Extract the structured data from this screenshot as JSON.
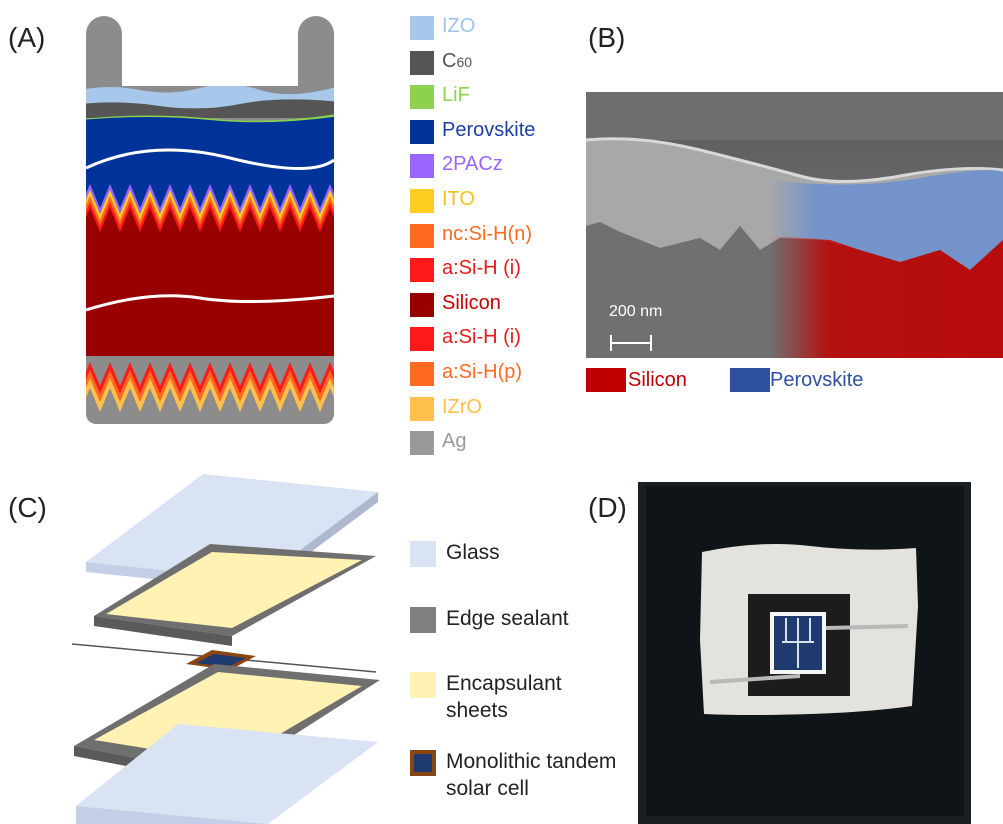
{
  "panels": {
    "a": "(A)",
    "b": "(B)",
    "c": "(C)",
    "d": "(D)"
  },
  "legend_a": [
    {
      "label": "IZO",
      "color": "#a7c8ea",
      "text_color": "#9fc3e8"
    },
    {
      "label": "C60",
      "color": "#555555",
      "text_color": "#555555"
    },
    {
      "label": "LiF",
      "color": "#8dd14f",
      "text_color": "#8dd14f"
    },
    {
      "label": "Perovskite",
      "color": "#003399",
      "text_color": "#1f3fa8"
    },
    {
      "label": "2PACz",
      "color": "#9966ff",
      "text_color": "#9966ff"
    },
    {
      "label": "ITO",
      "color": "#ffcc22",
      "text_color": "#f2c21b"
    },
    {
      "label": "nc:Si-H(n)",
      "color": "#ff6a22",
      "text_color": "#ff6a22"
    },
    {
      "label": "a:Si-H (i)",
      "color": "#ff1a1a",
      "text_color": "#e81a1a"
    },
    {
      "label": "Silicon",
      "color": "#990000",
      "text_color": "#c40000"
    },
    {
      "label": "a:Si-H (i)",
      "color": "#ff1a1a",
      "text_color": "#e81a1a"
    },
    {
      "label": "a:Si-H(p)",
      "color": "#ff6a22",
      "text_color": "#ff6a22"
    },
    {
      "label": "IZrO",
      "color": "#ffc04d",
      "text_color": "#ffbf40"
    },
    {
      "label": "Ag",
      "color": "#999999",
      "text_color": "#999999"
    }
  ],
  "sem": {
    "scale_label": "200 nm",
    "legend": [
      {
        "label": "Silicon",
        "color": "#c00000",
        "text_color": "#c00000"
      },
      {
        "label": "Perovskite",
        "color": "#2f4f9f",
        "text_color": "#2f4f9f"
      }
    ]
  },
  "legend_c": [
    {
      "label_lines": [
        "Glass"
      ],
      "color": "#dae3f3"
    },
    {
      "label_lines": [
        "Edge sealant"
      ],
      "color": "#7f7f7f"
    },
    {
      "label_lines": [
        "Encapsulant",
        "sheets"
      ],
      "color": "#fff2b3"
    },
    {
      "label_lines": [
        "Monolithic tandem",
        "solar cell"
      ],
      "color": "#1f3a6e",
      "border": "#8b4513"
    }
  ]
}
